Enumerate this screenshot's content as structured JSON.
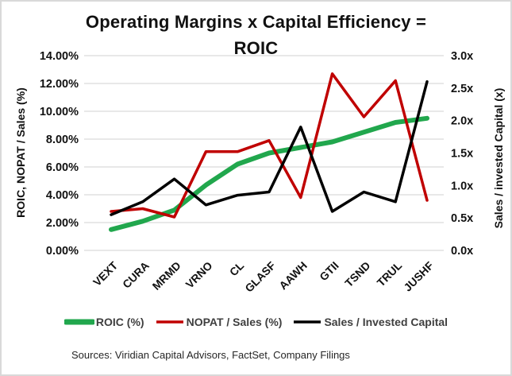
{
  "window": {
    "background": "#ffffff",
    "border_color": "#d9d9d9"
  },
  "chart_data": {
    "type": "line",
    "title": "Operating Margins x Capital Efficiency = ROIC",
    "title_lines": [
      "Operating Margins x Capital Efficiency =",
      "ROIC"
    ],
    "categories": [
      "VEXT",
      "CURA",
      "MRMD",
      "VRNO",
      "CL",
      "GLASF",
      "AAWH",
      "GTII",
      "TSND",
      "TRUL",
      "JUSHF"
    ],
    "series": [
      {
        "name": "ROIC (%)",
        "axis": "left",
        "color": "#21a74d",
        "line_width": 6,
        "values": [
          1.5,
          2.1,
          2.9,
          4.7,
          6.2,
          7.0,
          7.4,
          7.8,
          8.5,
          9.2,
          9.5
        ]
      },
      {
        "name": "NOPAT / Sales (%)",
        "axis": "left",
        "color": "#c00000",
        "line_width": 3.5,
        "values": [
          2.8,
          3.0,
          2.4,
          7.1,
          7.1,
          7.9,
          3.8,
          12.7,
          9.6,
          12.2,
          3.6
        ]
      },
      {
        "name": "Sales / Invested Capital",
        "axis": "right",
        "color": "#000000",
        "line_width": 3.5,
        "values": [
          0.55,
          0.75,
          1.1,
          0.7,
          0.85,
          0.9,
          1.9,
          0.6,
          0.9,
          0.75,
          2.6
        ]
      }
    ],
    "left_axis": {
      "label": "ROIC, NOPAT / Sales (%)",
      "min": 0,
      "max": 14,
      "step": 2,
      "tick_labels": [
        "14.00%",
        "12.00%",
        "10.00%",
        "8.00%",
        "6.00%",
        "4.00%",
        "2.00%",
        "0.00%"
      ]
    },
    "right_axis": {
      "label": "Sales / invested Capital (x)",
      "min": 0,
      "max": 3,
      "step": 0.5,
      "tick_labels": [
        "3.0x",
        "2.5x",
        "2.0x",
        "1.5x",
        "1.0x",
        "0.5x",
        "0.0x"
      ]
    },
    "grid": true,
    "gridline_color": "#d9d9d9",
    "legend_position": "bottom",
    "tick_label_color": "#111111",
    "legend_text_color": "#3f3f3f"
  },
  "footer": {
    "sources": "Sources: Viridian Capital Advisors, FactSet, Company Filings"
  }
}
